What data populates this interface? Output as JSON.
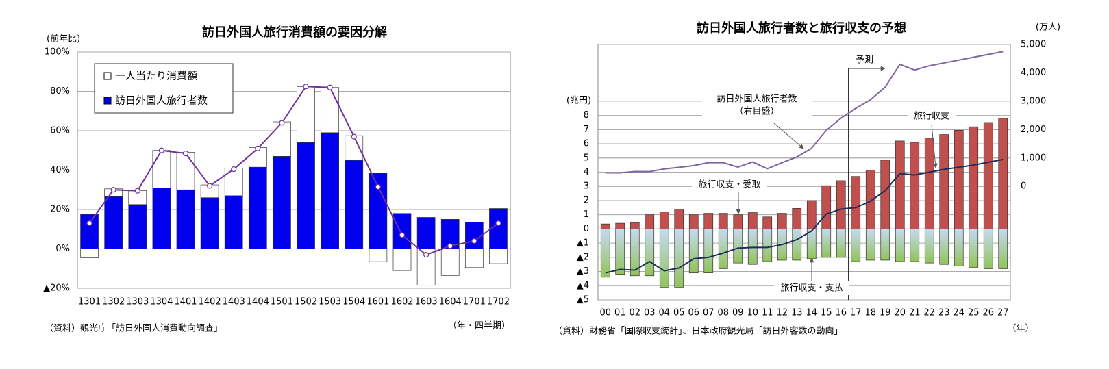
{
  "chart_data": [
    {
      "type": "bar",
      "title": "訪日外国人旅行消費額の要因分解",
      "y_label": "(前年比)",
      "x_label": "（年・四半期）",
      "source": "（資料）観光庁「訪日外国人消費動向調査」",
      "legend": "upper left",
      "categories": [
        "1301",
        "1302",
        "1303",
        "1304",
        "1401",
        "1402",
        "1403",
        "1404",
        "1501",
        "1502",
        "1503",
        "1504",
        "1601",
        "1602",
        "1603",
        "1604",
        "1701",
        "1702"
      ],
      "series": [
        {
          "name": "訪日外国人旅行者数",
          "type": "bar",
          "color": "#0000ee",
          "values": [
            17.5,
            26.5,
            22.5,
            31,
            30,
            26,
            27,
            41.5,
            47,
            54,
            59,
            45,
            38.5,
            18,
            16,
            15,
            13.5,
            20.5
          ]
        },
        {
          "name": "一人当たり消費額",
          "type": "bar",
          "color": "#ffffff",
          "values": [
            -4.5,
            4,
            7,
            19,
            19,
            6.5,
            14,
            10,
            17.5,
            28.5,
            23,
            12.5,
            -6.5,
            -11,
            -18.5,
            -13.5,
            -9.5,
            -7.5
          ]
        },
        {
          "type": "line",
          "color": "#7030a0",
          "markers": true,
          "values": [
            13,
            30,
            29.5,
            50,
            48.5,
            32,
            40.5,
            51,
            64,
            82.5,
            82,
            57,
            31.5,
            7,
            -3,
            1.5,
            4,
            13
          ]
        }
      ],
      "ylim": [
        -20,
        100
      ],
      "yticks": [
        {
          "value": -20,
          "label": "▲20%"
        },
        {
          "value": 0,
          "label": "0%"
        },
        {
          "value": 20,
          "label": "20%"
        },
        {
          "value": 40,
          "label": "40%"
        },
        {
          "value": 60,
          "label": "60%"
        },
        {
          "value": 80,
          "label": "80%"
        },
        {
          "value": 100,
          "label": "100%"
        }
      ],
      "grid": true
    },
    {
      "type": "bar",
      "title": "訪日外国人旅行者数と旅行収支の予想",
      "y_label": "(兆円)",
      "y2_label": "(万人)",
      "x_label": "（年）",
      "source": "（資料）財務省「国際収支統計」、日本政府観光局「訪日外客数の動向」",
      "annotations": [
        "予測",
        "（右目盛）"
      ],
      "categories": [
        "00",
        "01",
        "02",
        "03",
        "04",
        "05",
        "06",
        "07",
        "08",
        "09",
        "10",
        "11",
        "12",
        "13",
        "14",
        "15",
        "16",
        "17",
        "18",
        "19",
        "20",
        "21",
        "22",
        "23",
        "24",
        "25",
        "26",
        "27"
      ],
      "series": [
        {
          "name": "旅行収支・受取",
          "type": "bar",
          "color": "#c0504d",
          "values": [
            0.35,
            0.4,
            0.45,
            1.0,
            1.2,
            1.4,
            1.0,
            1.1,
            1.1,
            1.0,
            1.15,
            0.85,
            1.1,
            1.45,
            2.0,
            3.05,
            3.4,
            3.7,
            4.15,
            4.85,
            6.2,
            6.1,
            6.4,
            6.65,
            6.95,
            7.2,
            7.5,
            7.8
          ]
        },
        {
          "name": "旅行収支・支払",
          "type": "bar",
          "color": "#92c35a",
          "values": [
            -3.4,
            -3.2,
            -3.3,
            -3.3,
            -4.1,
            -4.1,
            -3.1,
            -3.1,
            -2.8,
            -2.4,
            -2.5,
            -2.3,
            -2.2,
            -2.2,
            -2.1,
            -2.0,
            -2.0,
            -2.3,
            -2.2,
            -2.2,
            -2.3,
            -2.3,
            -2.4,
            -2.5,
            -2.6,
            -2.7,
            -2.8,
            -2.8
          ]
        },
        {
          "name": "旅行収支",
          "type": "line",
          "color": "#1f2d5c",
          "values": [
            -3.1,
            -2.85,
            -2.9,
            -2.3,
            -2.95,
            -2.75,
            -2.1,
            -2.0,
            -1.7,
            -1.35,
            -1.3,
            -1.3,
            -1.1,
            -0.75,
            -0.15,
            1.05,
            1.4,
            1.5,
            1.95,
            2.7,
            3.9,
            3.8,
            4.0,
            4.2,
            4.35,
            4.5,
            4.7,
            4.9
          ]
        },
        {
          "name": "訪日外国人旅行者数",
          "type": "line",
          "axis": "y2",
          "color": "#8064a2",
          "values": [
            476,
            477,
            524,
            521,
            614,
            673,
            733,
            835,
            835,
            679,
            861,
            622,
            836,
            1036,
            1341,
            1974,
            2404,
            2750,
            3050,
            3500,
            4300,
            4100,
            4250,
            4350,
            4450,
            4550,
            4650,
            4750
          ]
        }
      ],
      "ylim": [
        -5,
        13
      ],
      "yticks": [
        {
          "value": -5,
          "label": "▲5"
        },
        {
          "value": -4,
          "label": "▲4"
        },
        {
          "value": -3,
          "label": "▲3"
        },
        {
          "value": -2,
          "label": "▲2"
        },
        {
          "value": -1,
          "label": "▲1"
        },
        0,
        1,
        2,
        3,
        4,
        5,
        6,
        7,
        8
      ],
      "y2lim": [
        -4000,
        5000
      ],
      "y2ticks": [
        0,
        {
          "value": 1000,
          "label": "1,000"
        },
        {
          "value": 2000,
          "label": "2,000"
        },
        {
          "value": 3000,
          "label": "3,000"
        },
        {
          "value": 4000,
          "label": "4,000"
        },
        {
          "value": 5000,
          "label": "5,000"
        }
      ],
      "grid": true
    }
  ]
}
